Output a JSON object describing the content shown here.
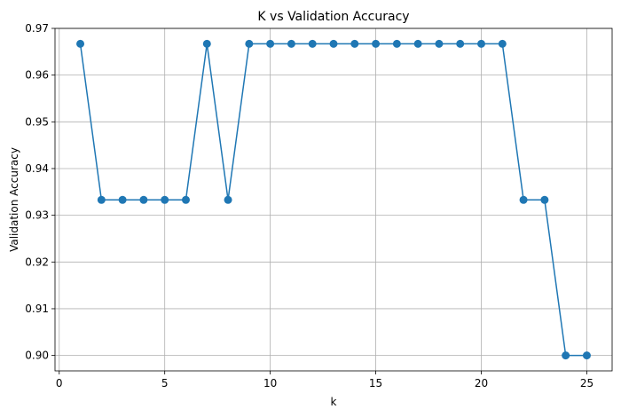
{
  "chart_data": {
    "type": "line",
    "title": "K vs Validation Accuracy",
    "xlabel": "k",
    "ylabel": "Validation Accuracy",
    "xlim": [
      -0.2,
      26.2
    ],
    "ylim": [
      0.8967,
      0.97
    ],
    "xticks": [
      0,
      5,
      10,
      15,
      20,
      25
    ],
    "xtick_labels": [
      "0",
      "5",
      "10",
      "15",
      "20",
      "25"
    ],
    "yticks": [
      0.9,
      0.91,
      0.92,
      0.93,
      0.94,
      0.95,
      0.96,
      0.97
    ],
    "ytick_labels": [
      "0.90",
      "0.91",
      "0.92",
      "0.93",
      "0.94",
      "0.95",
      "0.96",
      "0.97"
    ],
    "grid": true,
    "marker": "circle",
    "color": "#1f77b4",
    "x": [
      1,
      2,
      3,
      4,
      5,
      6,
      7,
      8,
      9,
      10,
      11,
      12,
      13,
      14,
      15,
      16,
      17,
      18,
      19,
      20,
      21,
      22,
      23,
      24,
      25
    ],
    "y": [
      0.9667,
      0.9333,
      0.9333,
      0.9333,
      0.9333,
      0.9333,
      0.9667,
      0.9333,
      0.9667,
      0.9667,
      0.9667,
      0.9667,
      0.9667,
      0.9667,
      0.9667,
      0.9667,
      0.9667,
      0.9667,
      0.9667,
      0.9667,
      0.9667,
      0.9333,
      0.9333,
      0.9,
      0.9
    ]
  }
}
